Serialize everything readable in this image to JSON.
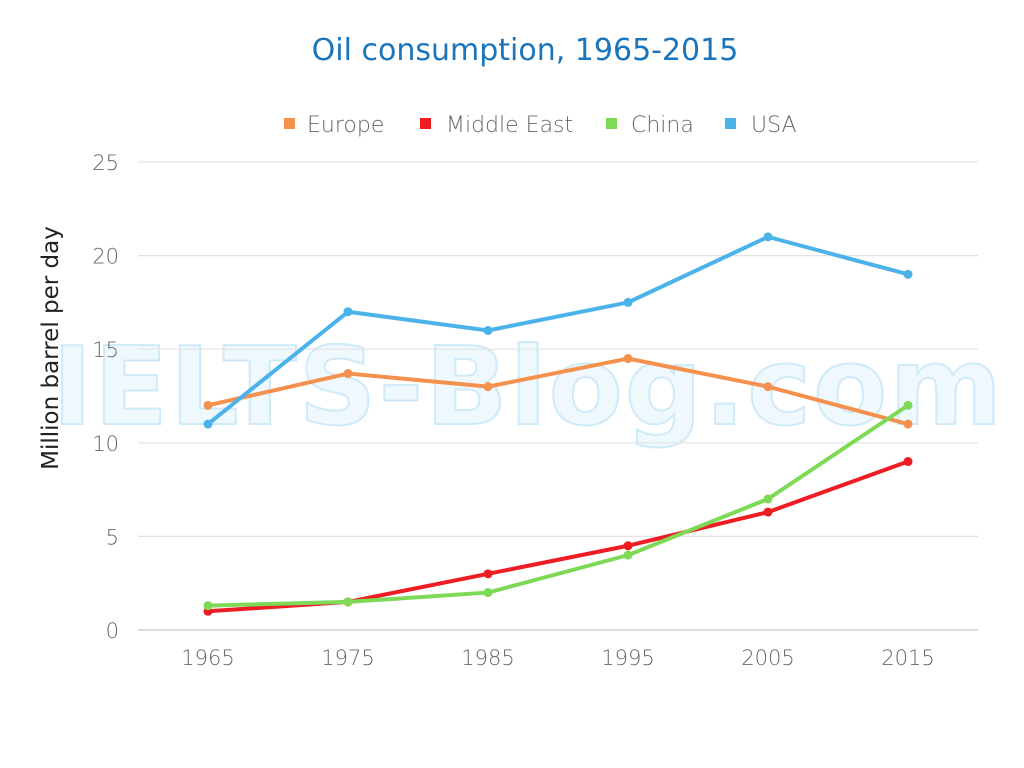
{
  "watermark": "IELTS-Blog.com",
  "chart_data": {
    "type": "line",
    "title": "Oil consumption, 1965-2015",
    "ylabel": "Million barrel per day",
    "xlabel": "",
    "x": [
      "1965",
      "1975",
      "1985",
      "1995",
      "2005",
      "2015"
    ],
    "ylim": [
      0,
      25
    ],
    "yticks": [
      "0",
      "5",
      "10",
      "15",
      "20",
      "25"
    ],
    "grid": true,
    "legend_position": "top",
    "series": [
      {
        "name": "Europe",
        "color": "#f4914f",
        "values": [
          12,
          13.7,
          13,
          14.5,
          13,
          11
        ]
      },
      {
        "name": "Middle East",
        "color": "#ee1c23",
        "values": [
          1,
          1.5,
          3,
          4.5,
          6.3,
          9
        ]
      },
      {
        "name": "China",
        "color": "#7ed957",
        "values": [
          1.3,
          1.5,
          2,
          4,
          7,
          12
        ]
      },
      {
        "name": "USA",
        "color": "#4cb3ea",
        "values": [
          11,
          17,
          16,
          17.5,
          21,
          19
        ]
      }
    ]
  }
}
